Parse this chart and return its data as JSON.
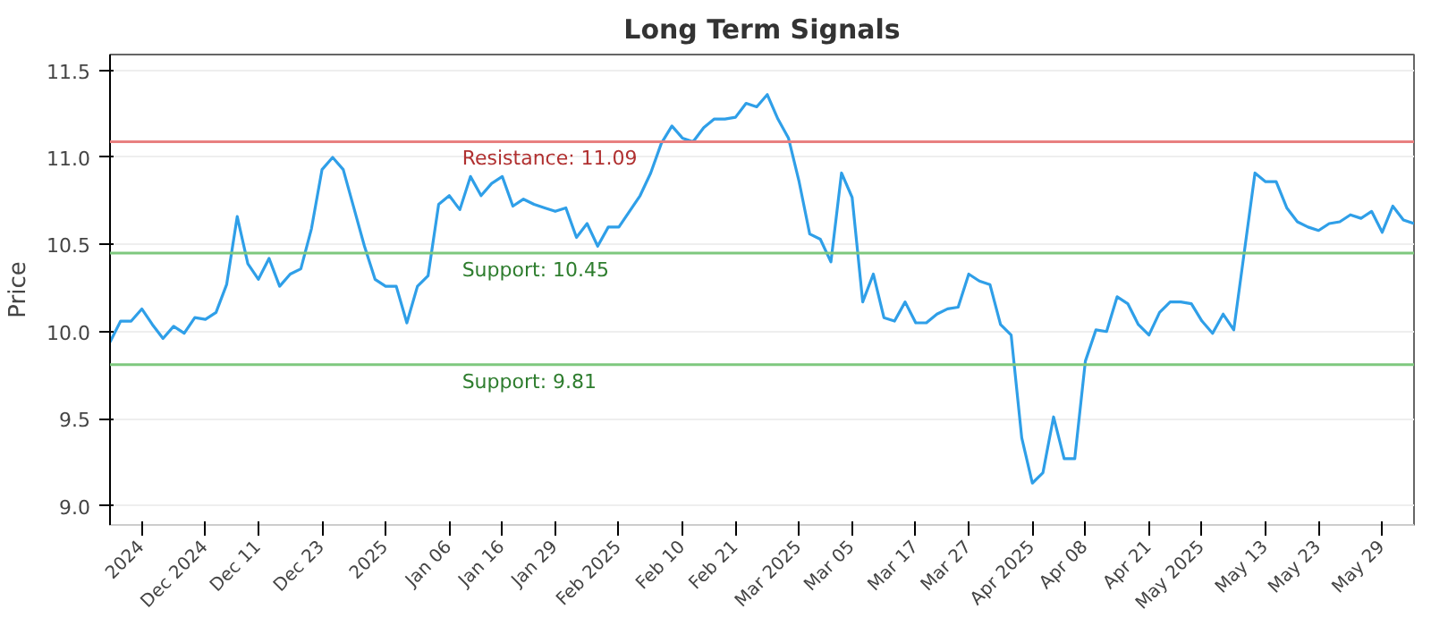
{
  "chart_data": {
    "type": "line",
    "title": "Long Term Signals",
    "ylabel": "Price",
    "categories": [
      null,
      null,
      null,
      "2024",
      null,
      null,
      null,
      null,
      null,
      "Dec 2024",
      null,
      null,
      null,
      null,
      "Dec 11",
      null,
      null,
      null,
      null,
      null,
      "Dec 23",
      null,
      null,
      null,
      null,
      null,
      "2025",
      null,
      null,
      null,
      null,
      null,
      "Jan 06",
      null,
      null,
      null,
      null,
      "Jan 16",
      null,
      null,
      null,
      null,
      "Jan 29",
      null,
      null,
      null,
      null,
      null,
      "Feb 2025",
      null,
      null,
      null,
      null,
      null,
      "Feb 10",
      null,
      null,
      null,
      null,
      "Feb 21",
      null,
      null,
      null,
      null,
      null,
      "Mar 2025",
      null,
      null,
      null,
      null,
      "Mar 05",
      null,
      null,
      null,
      null,
      null,
      "Mar 17",
      null,
      null,
      null,
      null,
      "Mar 27",
      null,
      null,
      null,
      null,
      null,
      "Apr 2025",
      null,
      null,
      null,
      null,
      "Apr 08",
      null,
      null,
      null,
      null,
      null,
      "Apr 21",
      null,
      null,
      null,
      null,
      "May 2025",
      null,
      null,
      null,
      null,
      null,
      "May 13",
      null,
      null,
      null,
      null,
      "May 23",
      null,
      null,
      null,
      null,
      null,
      "May 29",
      null,
      null,
      null
    ],
    "series": [
      {
        "color": "#2f9fe8",
        "values": [
          9.94,
          10.06,
          10.06,
          10.13,
          10.04,
          9.96,
          10.03,
          9.99,
          10.08,
          10.07,
          10.11,
          10.27,
          10.66,
          10.39,
          10.3,
          10.42,
          10.26,
          10.33,
          10.36,
          10.59,
          10.93,
          11.0,
          10.93,
          10.71,
          10.49,
          10.3,
          10.26,
          10.26,
          10.05,
          10.26,
          10.32,
          10.73,
          10.78,
          10.7,
          10.89,
          10.78,
          10.85,
          10.89,
          10.72,
          10.76,
          10.73,
          10.71,
          10.69,
          10.71,
          10.54,
          10.62,
          10.49,
          10.6,
          10.6,
          10.69,
          10.78,
          10.91,
          11.08,
          11.18,
          11.11,
          11.09,
          11.17,
          11.22,
          11.22,
          11.23,
          11.31,
          11.29,
          11.36,
          11.22,
          11.11,
          10.86,
          10.56,
          10.53,
          10.4,
          10.91,
          10.77,
          10.17,
          10.33,
          10.08,
          10.06,
          10.17,
          10.05,
          10.05,
          10.1,
          10.13,
          10.14,
          10.33,
          10.29,
          10.27,
          10.04,
          9.98,
          9.39,
          9.13,
          9.19,
          9.51,
          9.27,
          9.27,
          9.83,
          10.01,
          10.0,
          10.2,
          10.16,
          10.04,
          9.98,
          10.11,
          10.17,
          10.17,
          10.16,
          10.06,
          9.99,
          10.1,
          10.01,
          10.46,
          10.91,
          10.86,
          10.86,
          10.71,
          10.63,
          10.6,
          10.58,
          10.62,
          10.63,
          10.67,
          10.65,
          10.69,
          10.57,
          10.72,
          10.64,
          10.62
        ]
      }
    ],
    "ylim": [
      8.89,
      11.59
    ],
    "yticks": [
      {
        "value": 9.0,
        "label": "9.0"
      },
      {
        "value": 9.5,
        "label": "9.5"
      },
      {
        "value": 10.0,
        "label": "10.0"
      },
      {
        "value": 10.5,
        "label": "10.5"
      },
      {
        "value": 11.0,
        "label": "11.0"
      },
      {
        "value": 11.5,
        "label": "11.5"
      }
    ],
    "ref_lines": [
      {
        "axis": "y",
        "value": 11.09,
        "label": "Resistance: 11.09",
        "color": "#e88080"
      },
      {
        "axis": "y",
        "value": 10.45,
        "label": "Support: 10.45",
        "color": "#7ec87e"
      },
      {
        "axis": "y",
        "value": 9.81,
        "label": "Support: 9.81",
        "color": "#7ec87e"
      }
    ],
    "grid": "y",
    "marker": "none",
    "line_style": "solid"
  }
}
